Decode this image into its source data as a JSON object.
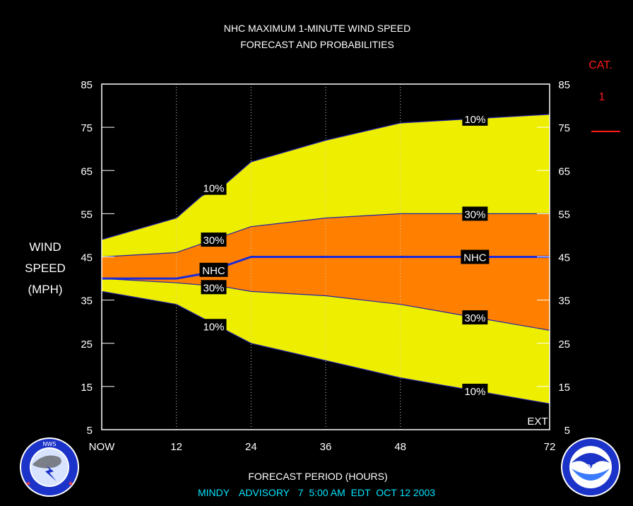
{
  "header": {
    "title_line1": "NHC MAXIMUM 1-MINUTE WIND SPEED",
    "title_line2": "FORECAST AND PROBABILITIES"
  },
  "y_axis": {
    "label_lines": [
      "WIND",
      "SPEED",
      "(MPH)"
    ],
    "ticks": [
      5,
      15,
      25,
      35,
      45,
      55,
      65,
      75,
      85
    ]
  },
  "x_axis": {
    "label": "FORECAST PERIOD (HOURS)",
    "ticks": [
      {
        "x": 0,
        "label": "NOW"
      },
      {
        "x": 12,
        "label": "12"
      },
      {
        "x": 24,
        "label": "24"
      },
      {
        "x": 36,
        "label": "36"
      },
      {
        "x": 48,
        "label": "48"
      },
      {
        "x": 72,
        "label": "72"
      }
    ]
  },
  "category": {
    "label": "CAT.",
    "value": "1",
    "color": "#ff1a1a"
  },
  "ext_label": "EXT",
  "advisory": {
    "storm": "MINDY",
    "word": "ADVISORY",
    "number": "7",
    "time": "5:00 AM",
    "zone": "EDT",
    "date": "OCT 12 2003"
  },
  "logos": {
    "left": {
      "icon": "nws-logo-icon",
      "text": "NATIONAL WEATHER SERVICE"
    },
    "right": {
      "icon": "noaa-logo-icon",
      "text": "NOAA"
    }
  },
  "colors": {
    "band_10": "#eeee00",
    "band_30": "#ff8000",
    "nhc_line": "#1a2bd9",
    "edge_line": "#2222aa",
    "plot_border": "#ffffff",
    "label_bg": "#000000"
  },
  "chart_data": {
    "type": "area",
    "title": "NHC MAXIMUM 1-MINUTE WIND SPEED FORECAST AND PROBABILITIES",
    "xlabel": "FORECAST PERIOD (HOURS)",
    "ylabel": "WIND SPEED (MPH)",
    "xlim": [
      0,
      72
    ],
    "ylim": [
      5,
      85
    ],
    "grid": "vertical dotted lines at 12, 24, 36, 48",
    "x": [
      0,
      12,
      16,
      20,
      24,
      36,
      48,
      60,
      72
    ],
    "series": [
      {
        "name": "10%",
        "band": "upper",
        "values": [
          49,
          54,
          59,
          62,
          67,
          72,
          76,
          77,
          78
        ]
      },
      {
        "name": "30%",
        "band": "upper",
        "values": [
          45,
          46,
          48,
          50,
          52,
          54,
          55,
          55,
          55
        ]
      },
      {
        "name": "NHC",
        "values": [
          40,
          40,
          41,
          43,
          45,
          45,
          45,
          45,
          45
        ]
      },
      {
        "name": "30%",
        "band": "lower",
        "values": [
          40,
          39,
          38.5,
          38,
          37,
          36,
          34,
          31,
          28
        ]
      },
      {
        "name": "10%",
        "band": "lower",
        "values": [
          37,
          34,
          31,
          28,
          25,
          21,
          17,
          14,
          11
        ]
      }
    ],
    "labels": [
      {
        "text": "10%",
        "x": 18,
        "y": 61
      },
      {
        "text": "30%",
        "x": 18,
        "y": 49
      },
      {
        "text": "NHC",
        "x": 18,
        "y": 42
      },
      {
        "text": "30%",
        "x": 18,
        "y": 38
      },
      {
        "text": "10%",
        "x": 18,
        "y": 29
      },
      {
        "text": "10%",
        "x": 60,
        "y": 77
      },
      {
        "text": "30%",
        "x": 60,
        "y": 55
      },
      {
        "text": "NHC",
        "x": 60,
        "y": 45
      },
      {
        "text": "30%",
        "x": 60,
        "y": 31
      },
      {
        "text": "10%",
        "x": 60,
        "y": 14
      }
    ]
  }
}
